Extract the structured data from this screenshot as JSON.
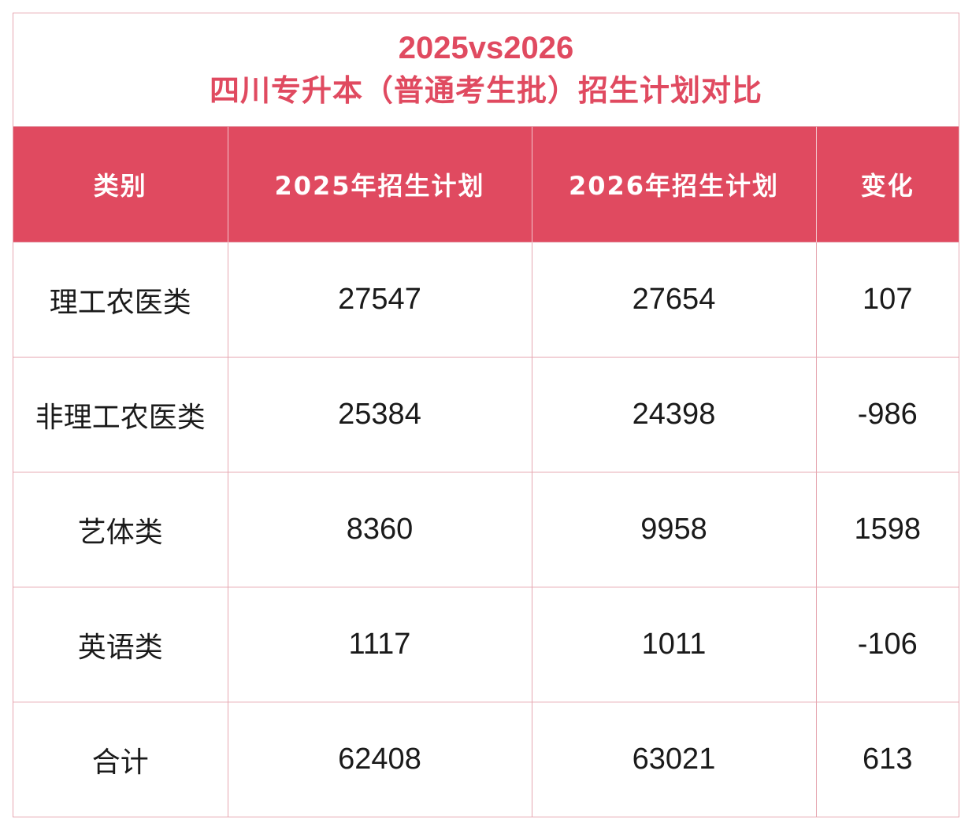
{
  "chart_data": {
    "type": "table",
    "title_line1": "2025vs2026",
    "title_line2": "四川专升本（普通考生批）招生计划对比",
    "columns": [
      "类别",
      "2025年招生计划",
      "2026年招生计划",
      "变化"
    ],
    "rows": [
      {
        "category": "理工农医类",
        "plan_2025": "27547",
        "plan_2026": "27654",
        "change": "107"
      },
      {
        "category": "非理工农医类",
        "plan_2025": "25384",
        "plan_2026": "24398",
        "change": "-986"
      },
      {
        "category": "艺体类",
        "plan_2025": "8360",
        "plan_2026": "9958",
        "change": "1598"
      },
      {
        "category": "英语类",
        "plan_2025": "1117",
        "plan_2026": "1011",
        "change": "-106"
      },
      {
        "category": "合计",
        "plan_2025": "62408",
        "plan_2026": "63021",
        "change": "613"
      }
    ]
  },
  "colors": {
    "accent": "#e04a60",
    "border": "#e6a7b1",
    "header_text": "#ffffff",
    "body_text": "#1a1a1a"
  }
}
